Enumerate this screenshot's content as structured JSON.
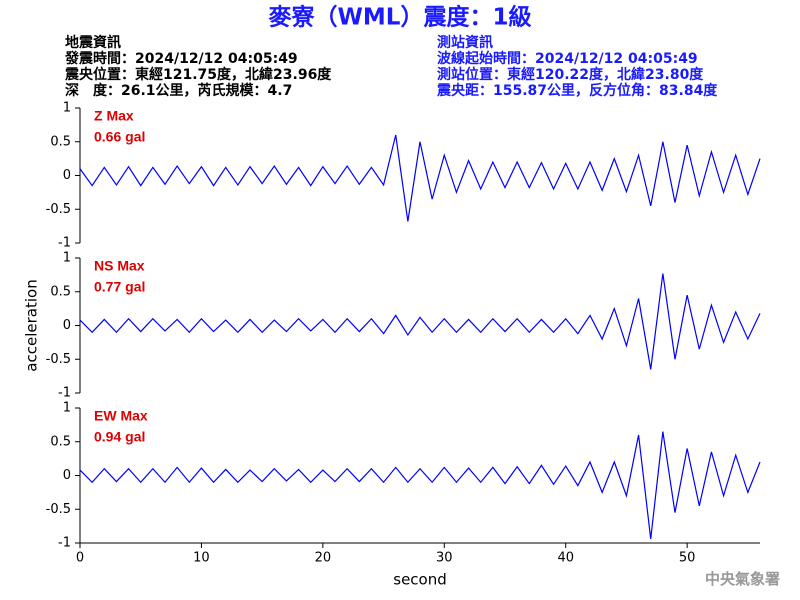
{
  "header": {
    "title": "麥寮（WML）震度：1級",
    "left": [
      "地震資訊",
      "發震時間：2024/12/12 04:05:49",
      "震央位置：東經121.75度，北緯23.96度",
      "深　度：26.1公里，芮氏規模：4.7"
    ],
    "right": [
      "測站資訊",
      "波線起始時間：2024/12/12 04:05:49",
      "測站位置：東經120.22度，北緯23.80度",
      "震央距：155.87公里，反方位角：83.84度"
    ]
  },
  "footer": "中央氣象署",
  "chart_data": [
    {
      "type": "line",
      "annotation": [
        "Z Max",
        "0.66 gal"
      ],
      "color": "#0000ff",
      "xlim": [
        0,
        56
      ],
      "ylim": [
        -1,
        1
      ],
      "yticks": [
        -1,
        -0.5,
        0,
        0.5,
        1
      ],
      "x": [
        0,
        1,
        2,
        3,
        4,
        5,
        6,
        7,
        8,
        9,
        10,
        11,
        12,
        13,
        14,
        15,
        16,
        17,
        18,
        19,
        20,
        21,
        22,
        23,
        24,
        25,
        26,
        27,
        28,
        29,
        30,
        31,
        32,
        33,
        34,
        35,
        36,
        37,
        38,
        39,
        40,
        41,
        42,
        43,
        44,
        45,
        46,
        47,
        48,
        49,
        50,
        51,
        52,
        53,
        54,
        55,
        56
      ],
      "values": [
        0.1,
        -0.15,
        0.12,
        -0.14,
        0.13,
        -0.15,
        0.12,
        -0.13,
        0.14,
        -0.12,
        0.13,
        -0.15,
        0.12,
        -0.14,
        0.13,
        -0.12,
        0.14,
        -0.13,
        0.12,
        -0.15,
        0.13,
        -0.12,
        0.14,
        -0.13,
        0.12,
        -0.14,
        0.6,
        -0.68,
        0.5,
        -0.35,
        0.3,
        -0.25,
        0.22,
        -0.2,
        0.2,
        -0.18,
        0.2,
        -0.18,
        0.19,
        -0.2,
        0.18,
        -0.2,
        0.2,
        -0.22,
        0.25,
        -0.24,
        0.3,
        -0.45,
        0.5,
        -0.4,
        0.45,
        -0.3,
        0.35,
        -0.25,
        0.3,
        -0.28,
        0.25
      ]
    },
    {
      "type": "line",
      "annotation": [
        "NS Max",
        "0.77 gal"
      ],
      "y_label": "acceleration",
      "color": "#0000ff",
      "xlim": [
        0,
        56
      ],
      "ylim": [
        -1,
        1
      ],
      "yticks": [
        -1,
        -0.5,
        0,
        0.5,
        1
      ],
      "x": [
        0,
        1,
        2,
        3,
        4,
        5,
        6,
        7,
        8,
        9,
        10,
        11,
        12,
        13,
        14,
        15,
        16,
        17,
        18,
        19,
        20,
        21,
        22,
        23,
        24,
        25,
        26,
        27,
        28,
        29,
        30,
        31,
        32,
        33,
        34,
        35,
        36,
        37,
        38,
        39,
        40,
        41,
        42,
        43,
        44,
        45,
        46,
        47,
        48,
        49,
        50,
        51,
        52,
        53,
        54,
        55,
        56
      ],
      "values": [
        0.08,
        -0.1,
        0.09,
        -0.1,
        0.1,
        -0.09,
        0.1,
        -0.08,
        0.09,
        -0.1,
        0.1,
        -0.09,
        0.08,
        -0.1,
        0.09,
        -0.1,
        0.08,
        -0.09,
        0.1,
        -0.08,
        0.09,
        -0.1,
        0.1,
        -0.09,
        0.1,
        -0.12,
        0.15,
        -0.14,
        0.12,
        -0.1,
        0.1,
        -0.1,
        0.09,
        -0.1,
        0.1,
        -0.09,
        0.1,
        -0.1,
        0.09,
        -0.1,
        0.1,
        -0.12,
        0.15,
        -0.2,
        0.25,
        -0.3,
        0.4,
        -0.65,
        0.77,
        -0.5,
        0.45,
        -0.35,
        0.3,
        -0.25,
        0.2,
        -0.2,
        0.18
      ]
    },
    {
      "type": "line",
      "annotation": [
        "EW Max",
        "0.94 gal"
      ],
      "x_label": "second",
      "color": "#0000ff",
      "xlim": [
        0,
        56
      ],
      "ylim": [
        -1,
        1
      ],
      "yticks": [
        -1,
        -0.5,
        0,
        0.5,
        1
      ],
      "xticks": [
        0,
        10,
        20,
        30,
        40,
        50
      ],
      "x": [
        0,
        1,
        2,
        3,
        4,
        5,
        6,
        7,
        8,
        9,
        10,
        11,
        12,
        13,
        14,
        15,
        16,
        17,
        18,
        19,
        20,
        21,
        22,
        23,
        24,
        25,
        26,
        27,
        28,
        29,
        30,
        31,
        32,
        33,
        34,
        35,
        36,
        37,
        38,
        39,
        40,
        41,
        42,
        43,
        44,
        45,
        46,
        47,
        48,
        49,
        50,
        51,
        52,
        53,
        54,
        55,
        56
      ],
      "values": [
        0.08,
        -0.1,
        0.1,
        -0.09,
        0.1,
        -0.1,
        0.1,
        -0.1,
        0.12,
        -0.1,
        0.11,
        -0.1,
        0.09,
        -0.1,
        0.08,
        -0.09,
        0.1,
        -0.08,
        0.09,
        -0.1,
        0.08,
        -0.09,
        0.1,
        -0.09,
        0.1,
        -0.1,
        0.12,
        -0.1,
        0.1,
        -0.1,
        0.12,
        -0.1,
        0.11,
        -0.1,
        0.12,
        -0.12,
        0.13,
        -0.12,
        0.15,
        -0.13,
        0.14,
        -0.15,
        0.2,
        -0.25,
        0.2,
        -0.3,
        0.6,
        -0.94,
        0.65,
        -0.55,
        0.4,
        -0.45,
        0.35,
        -0.3,
        0.3,
        -0.25,
        0.2
      ]
    }
  ]
}
